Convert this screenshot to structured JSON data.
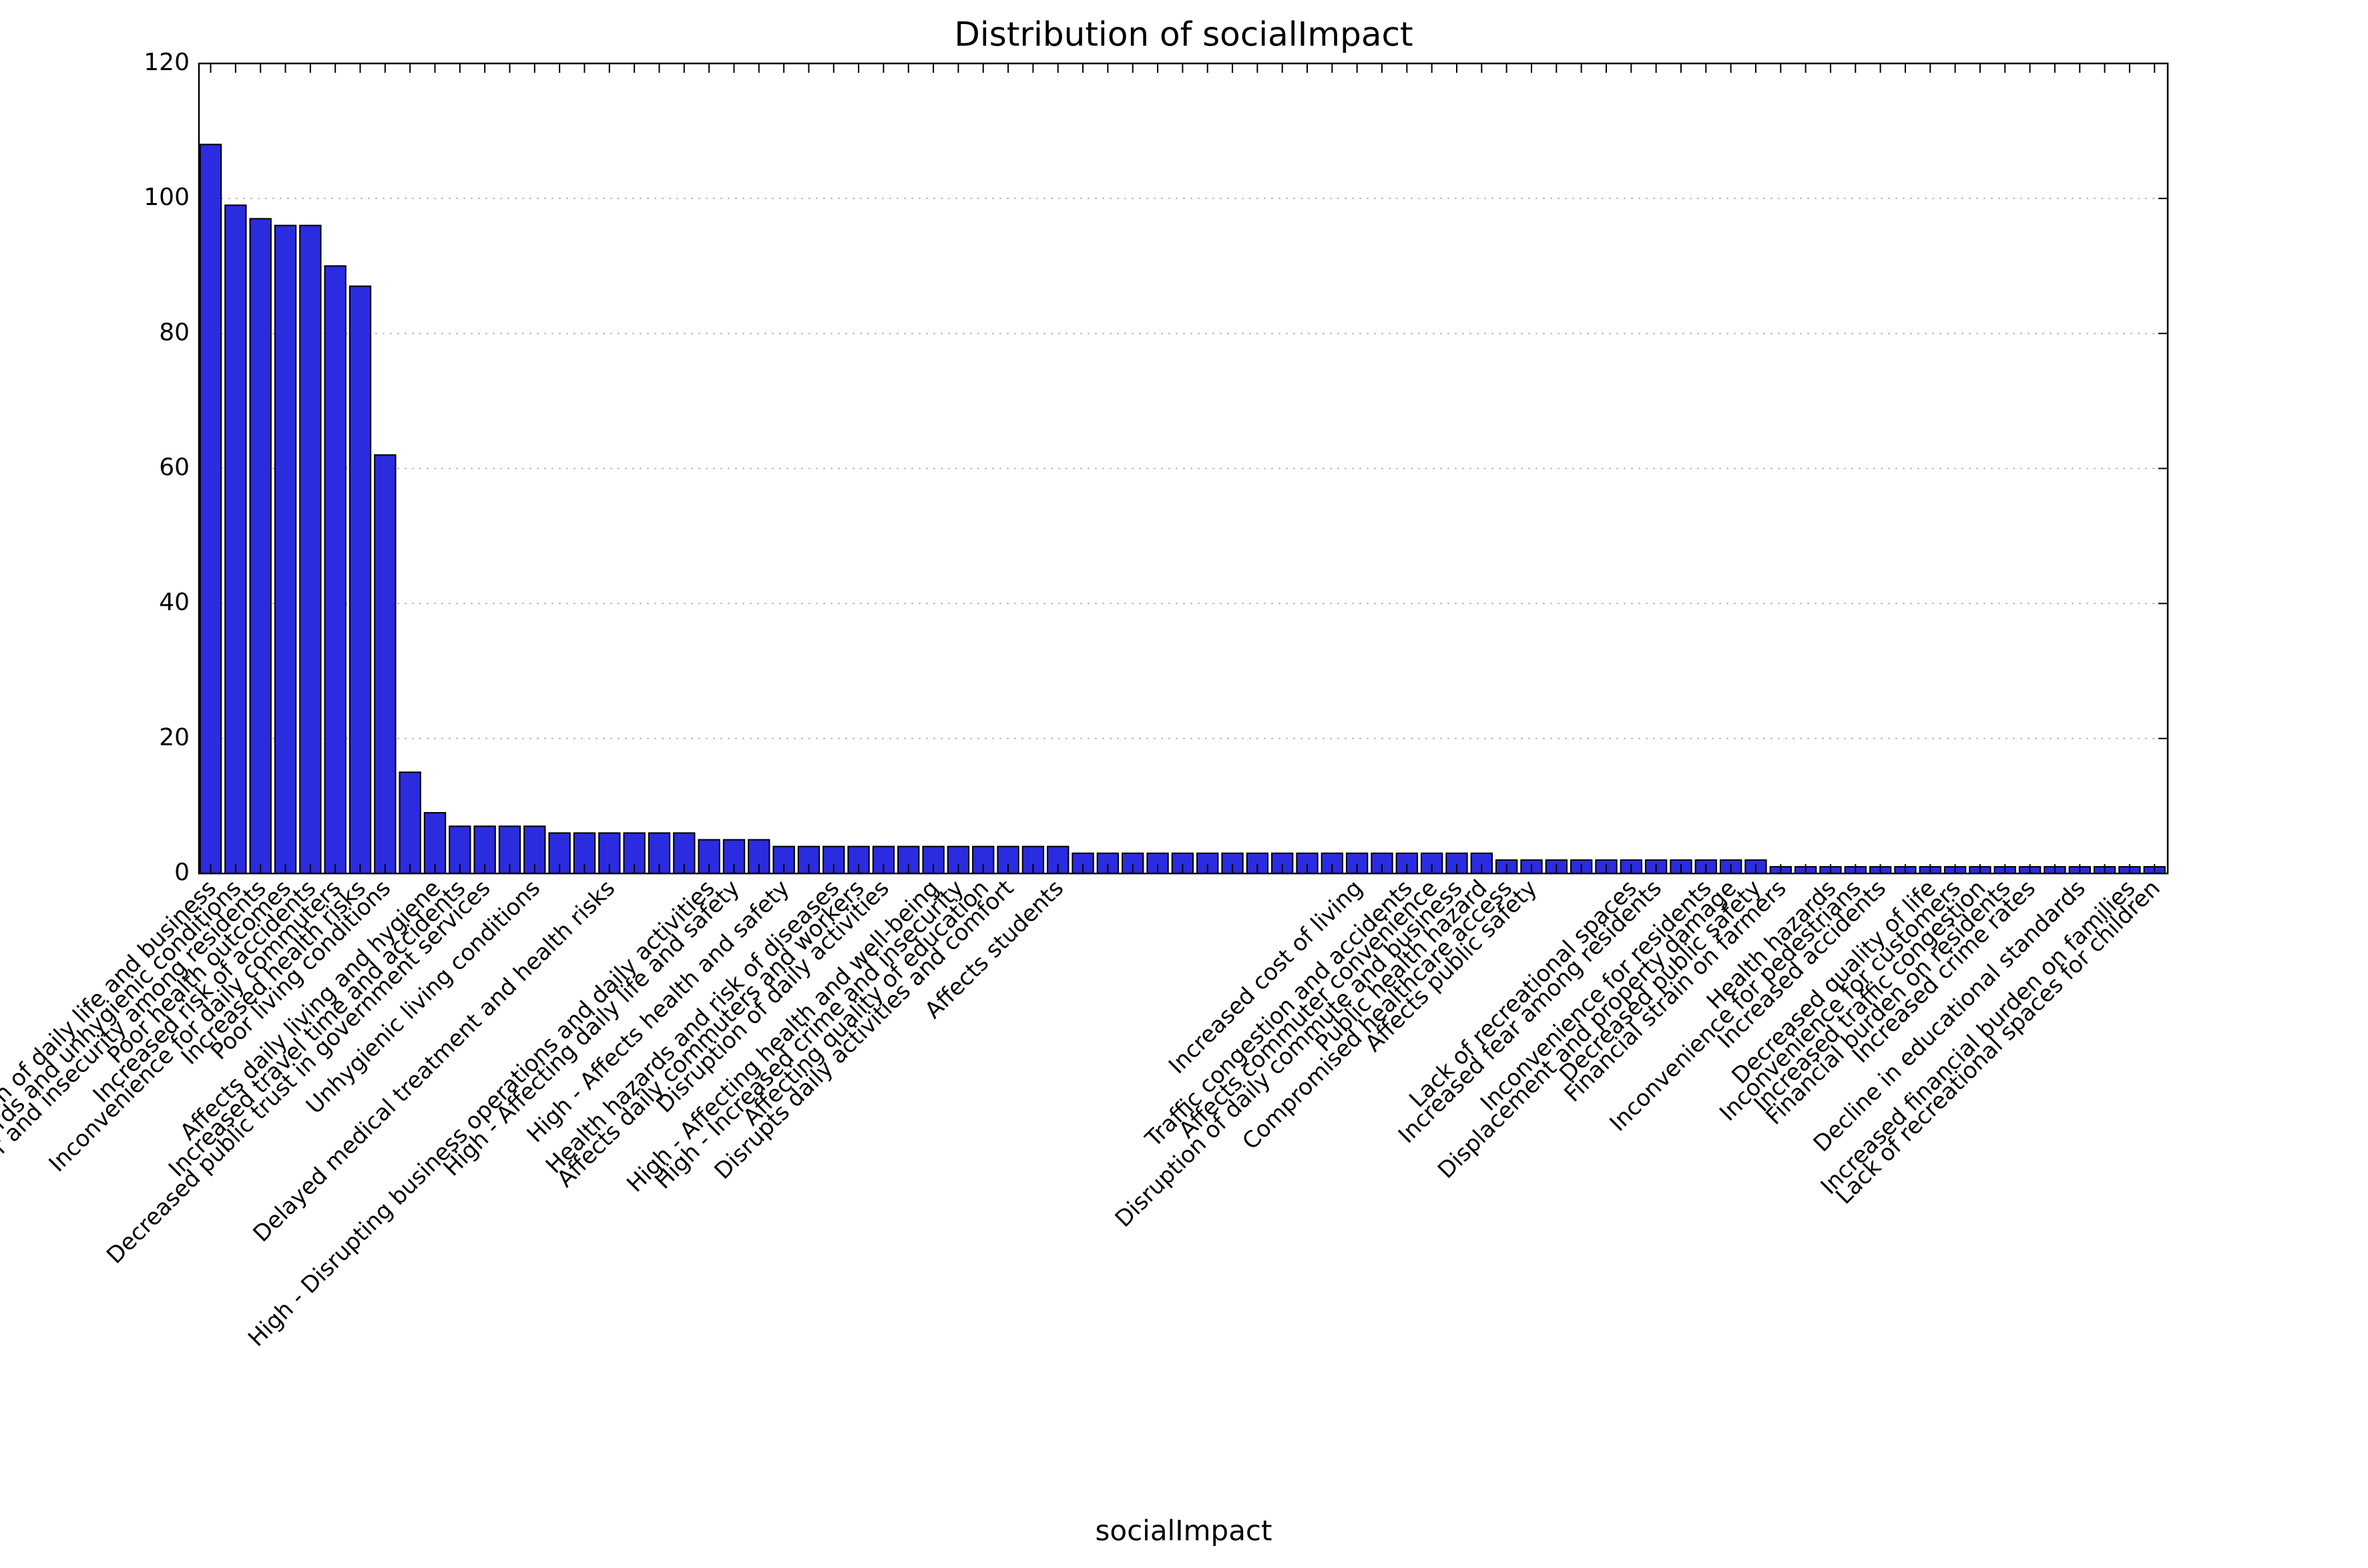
{
  "chart_data": {
    "type": "bar",
    "title": "Distribution of socialImpact",
    "x_label": "socialImpact",
    "categories": [
      "Disruption of daily life and business",
      "Health hazards and unhygienic conditions",
      "Increased fear and insecurity among residents",
      "Poor health outcomes",
      "Increased risk of accidents",
      "Inconvenience for daily commuters",
      "Increased health risks",
      "Poor living conditions",
      null,
      "Affects daily living and hygiene",
      "Increased travel time and accidents",
      "Decreased public trust in government services",
      null,
      "Unhygienic living conditions",
      null,
      null,
      "Delayed medical treatment and health risks",
      null,
      null,
      null,
      "High - Disrupting business operations and daily activities",
      "High - Affecting daily life and safety",
      null,
      "High - Affects health and safety",
      null,
      "Health hazards and risk of diseases",
      "Affects daily commuters and workers",
      "Disruption of daily activities",
      null,
      "High - Affecting health and well-being",
      "High - Increased crime and insecurity",
      "Affecting quality of education",
      "Disrupts daily activities and comfort",
      null,
      "Affects students",
      null,
      null,
      null,
      null,
      null,
      null,
      null,
      null,
      null,
      null,
      null,
      "Increased cost of living",
      null,
      "Traffic congestion and accidents",
      "Affects commuter convenience",
      "Disruption of daily commute and business",
      "Public health hazard",
      "Compromised healthcare access",
      "Affects public safety",
      null,
      null,
      null,
      "Lack of recreational spaces",
      "Increased fear among residents",
      null,
      "Inconvenience for residents",
      "Displacement and property damage",
      "Decreased public safety",
      "Financial strain on farmers",
      null,
      "Health hazards",
      "Inconvenience for pedestrians",
      "Increased accidents",
      null,
      "Decreased quality of life",
      "Inconvenience for customers",
      "Increased traffic congestion",
      "Financial burden on residents",
      "Increased crime rates",
      null,
      "Decline in educational standards",
      null,
      "Increased financial burden on families",
      "Lack of recreational spaces for children"
    ],
    "values": [
      108,
      99,
      97,
      96,
      96,
      90,
      87,
      62,
      15,
      9,
      7,
      7,
      7,
      7,
      6,
      6,
      6,
      6,
      6,
      6,
      5,
      5,
      5,
      4,
      4,
      4,
      4,
      4,
      4,
      4,
      4,
      4,
      4,
      4,
      4,
      3,
      3,
      3,
      3,
      3,
      3,
      3,
      3,
      3,
      3,
      3,
      3,
      3,
      3,
      3,
      3,
      3,
      2,
      2,
      2,
      2,
      2,
      2,
      2,
      2,
      2,
      2,
      2,
      1,
      1,
      1,
      1,
      1,
      1,
      1,
      1,
      1,
      1,
      1,
      1,
      1,
      1,
      1,
      1
    ],
    "color": "#2b2be0",
    "ylim": [
      0,
      120
    ],
    "yticks": [
      0,
      20,
      40,
      60,
      80,
      100,
      120
    ],
    "grid": true
  }
}
